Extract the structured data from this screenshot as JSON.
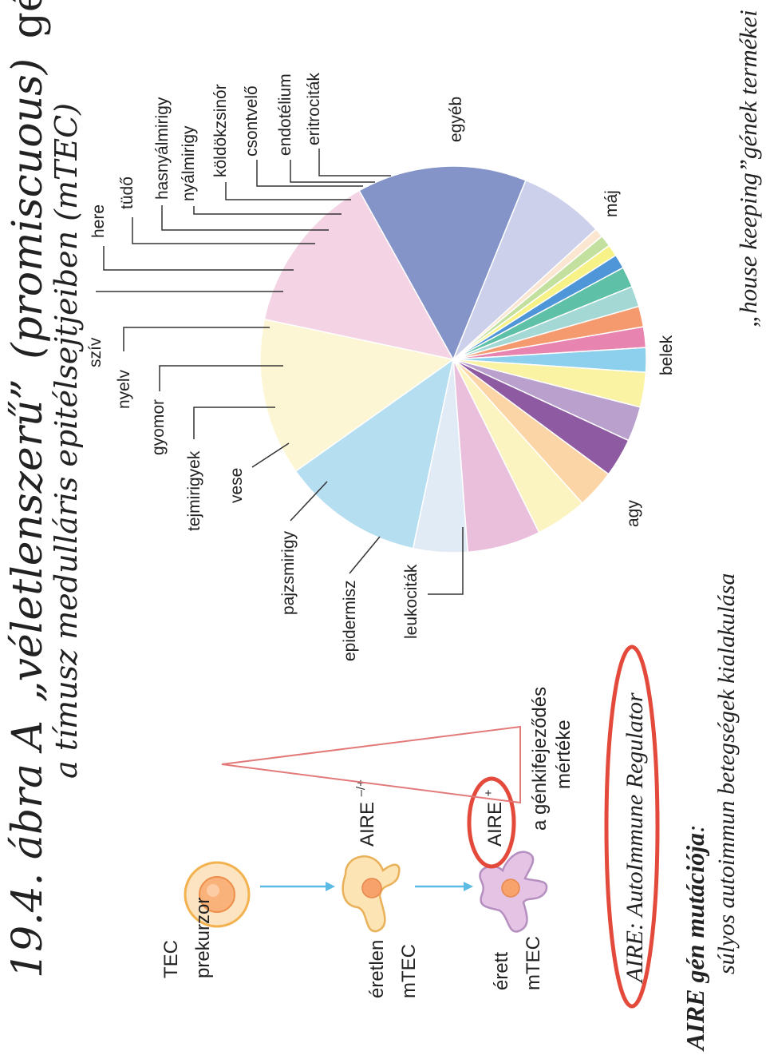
{
  "title": {
    "line1_prefix": "19.4. ábra A",
    "line1_quoted": "„véletlenszerű”",
    "line1_paren": "(promiscuous)",
    "line1_suffix": "génexpresszió",
    "line2": "a tímusz medulláris epitélsejtjeiben (mTEC)"
  },
  "cells": {
    "precursor_label": [
      "TEC",
      "prekurzor"
    ],
    "immature_label": [
      "éretlen",
      "mTEC"
    ],
    "mature_label": [
      "érett",
      "mTEC"
    ],
    "aire_het": "AIRE",
    "aire_het_sup": "–/+",
    "aire_pos": "AIRE",
    "aire_pos_sup": "+",
    "expression_label": [
      "a génkifejeződés",
      "mértéke"
    ]
  },
  "aire_definition": {
    "abbr": "AIRE",
    "text": ": AutoImmune Regulator"
  },
  "mutation": {
    "heading_bold": "AIRE",
    "heading_rest": " gén mutációja",
    "heading_colon": ":",
    "consequence": "súlyos autoimmun betegségek kialakulása"
  },
  "house_keeping": "„house keeping”gének termékei",
  "chart_data": {
    "type": "pie",
    "title": "",
    "slices": [
      {
        "label": "leukociták",
        "value": 11.0,
        "color": "#b5def1"
      },
      {
        "label": "agy",
        "value": 12.2,
        "color": "#fcf6d4"
      },
      {
        "label": "belek",
        "value": 12.6,
        "color": "#f3d3e4"
      },
      {
        "label": "máj",
        "value": 13.2,
        "color": "#8494c9"
      },
      {
        "label": "egyéb",
        "value": 6.6,
        "color": "#cdd0ea"
      },
      {
        "label": "eritrociták",
        "value": 0.7,
        "color": "#fbe6d2"
      },
      {
        "label": "endotélium",
        "value": 0.9,
        "color": "#c3e09f"
      },
      {
        "label": "csontvelő",
        "value": 0.9,
        "color": "#f7f287"
      },
      {
        "label": "köldökzsinór",
        "value": 1.1,
        "color": "#4e96d8"
      },
      {
        "label": "nyálmirigy",
        "value": 1.6,
        "color": "#5fc0a8"
      },
      {
        "label": "hasnyálmirigy",
        "value": 1.6,
        "color": "#a3d8d5"
      },
      {
        "label": "tüdő",
        "value": 1.6,
        "color": "#f59a6e"
      },
      {
        "label": "here",
        "value": 1.6,
        "color": "#e784b0"
      },
      {
        "label": "szív",
        "value": 1.9,
        "color": "#8cd0ee"
      },
      {
        "label": "nyelv",
        "value": 2.7,
        "color": "#fbf3a4"
      },
      {
        "label": "gyomor",
        "value": 2.7,
        "color": "#baa0cd"
      },
      {
        "label": "tejmirigyek",
        "value": 3.0,
        "color": "#8e5aa2"
      },
      {
        "label": "vese",
        "value": 3.0,
        "color": "#fbd5a5"
      },
      {
        "label": "pajzsmirigy",
        "value": 4.0,
        "color": "#fcf4c0"
      },
      {
        "label": "epidermisz",
        "value": 5.7,
        "color": "#e9bfdc"
      },
      {
        "label": "leukociták2",
        "value": 4.2,
        "color": "#e0ebf6"
      }
    ]
  }
}
